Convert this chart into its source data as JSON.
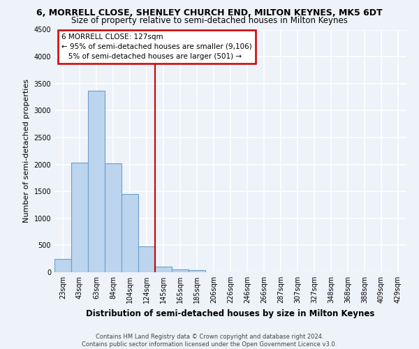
{
  "title": "6, MORRELL CLOSE, SHENLEY CHURCH END, MILTON KEYNES, MK5 6DT",
  "subtitle": "Size of property relative to semi-detached houses in Milton Keynes",
  "xlabel": "Distribution of semi-detached houses by size in Milton Keynes",
  "ylabel": "Number of semi-detached properties",
  "footer_line1": "Contains HM Land Registry data © Crown copyright and database right 2024.",
  "footer_line2": "Contains public sector information licensed under the Open Government Licence v3.0.",
  "bar_labels": [
    "23sqm",
    "43sqm",
    "63sqm",
    "84sqm",
    "104sqm",
    "124sqm",
    "145sqm",
    "165sqm",
    "185sqm",
    "206sqm",
    "226sqm",
    "246sqm",
    "266sqm",
    "287sqm",
    "307sqm",
    "327sqm",
    "348sqm",
    "368sqm",
    "388sqm",
    "409sqm",
    "429sqm"
  ],
  "bar_values": [
    250,
    2030,
    3370,
    2020,
    1450,
    480,
    100,
    55,
    40,
    0,
    0,
    0,
    0,
    0,
    0,
    0,
    0,
    0,
    0,
    0,
    0
  ],
  "bar_color": "#bcd4ed",
  "bar_edge_color": "#6aa0cb",
  "vline_x": 5.5,
  "vline_color": "#cc0000",
  "ylim": [
    0,
    4500
  ],
  "yticks": [
    0,
    500,
    1000,
    1500,
    2000,
    2500,
    3000,
    3500,
    4000,
    4500
  ],
  "annotation_text": "6 MORRELL CLOSE: 127sqm\n← 95% of semi-detached houses are smaller (9,106)\n   5% of semi-detached houses are larger (501) →",
  "bg_color": "#eef2f9",
  "grid_color": "#d8e4f0",
  "title_fontsize": 9,
  "subtitle_fontsize": 8.5,
  "tick_fontsize": 7,
  "ylabel_fontsize": 8,
  "xlabel_fontsize": 8.5
}
